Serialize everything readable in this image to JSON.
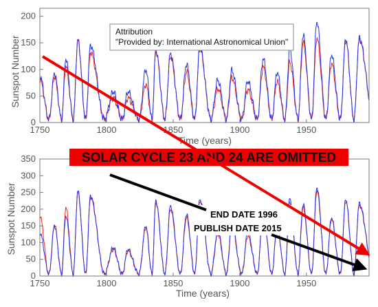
{
  "chart_data": [
    {
      "type": "line",
      "xlabel": "Time (years)",
      "ylabel": "Sunspot Number",
      "xlim": [
        1750,
        1997
      ],
      "ylim": [
        0,
        215
      ],
      "xticks": [
        "1750",
        "1800",
        "1850",
        "1900",
        "1950"
      ],
      "yticks": [
        "0",
        "50",
        "100",
        "150",
        "200"
      ],
      "grid": false,
      "cycle_peaks": {
        "years": [
          1750,
          1761,
          1769.5,
          1778.5,
          1788,
          1805,
          1816,
          1829.5,
          1837,
          1848,
          1860,
          1870,
          1883.5,
          1894,
          1906,
          1917.5,
          1928,
          1937.5,
          1947.5,
          1957.8,
          1968.8,
          1979.5,
          1989.5
        ],
        "blue": [
          88,
          93,
          120,
          155,
          145,
          58,
          58,
          100,
          137,
          130,
          110,
          142,
          80,
          98,
          78,
          120,
          95,
          138,
          165,
          190,
          128,
          157,
          152
        ],
        "red": [
          82,
          86,
          106,
          154,
          132,
          47,
          46,
          72,
          134,
          124,
          95,
          139,
          64,
          85,
          62,
          104,
          78,
          114,
          151,
          159,
          111,
          155,
          150
        ]
      },
      "series_colors": [
        "#2233ee",
        "#ee2222"
      ]
    },
    {
      "type": "line",
      "xlabel": "Time (years)",
      "ylabel": "Sunspot Number",
      "xlim": [
        1750,
        1997
      ],
      "ylim": [
        0,
        350
      ],
      "xticks": [
        "1750",
        "1800",
        "1850",
        "1900",
        "1950"
      ],
      "yticks": [
        "0",
        "50",
        "100",
        "150",
        "200",
        "250",
        "300",
        "350"
      ],
      "grid": false,
      "cycle_peaks": {
        "years": [
          1750,
          1761,
          1769.5,
          1778.5,
          1788,
          1805,
          1816,
          1829.5,
          1837,
          1848,
          1860,
          1870,
          1883.5,
          1894,
          1906,
          1917.5,
          1928,
          1937.5,
          1947.5,
          1957.8,
          1968.8,
          1979.5,
          1989.5
        ],
        "blue": [
          130,
          150,
          180,
          255,
          240,
          85,
          80,
          150,
          225,
          210,
          185,
          230,
          135,
          160,
          130,
          195,
          150,
          230,
          215,
          265,
          175,
          230,
          210
        ],
        "red": [
          180,
          155,
          205,
          250,
          235,
          80,
          75,
          145,
          220,
          200,
          175,
          225,
          125,
          150,
          120,
          185,
          145,
          220,
          205,
          255,
          170,
          225,
          205
        ]
      },
      "series_colors": [
        "#2233ee",
        "#ee2222"
      ]
    }
  ],
  "attribution": {
    "title": "Attribution",
    "text": "\"Provided by: International Astronomical Union\""
  },
  "banner": {
    "text": "SOLAR CYCLE 23 AND 24 ARE OMITTED",
    "background": "#ee0000"
  },
  "annotation": {
    "line1": "END DATE 1996",
    "line2": "PUBLISH DATE 2015"
  },
  "arrow_colors": {
    "red": "#ee0000",
    "black": "#000000"
  }
}
